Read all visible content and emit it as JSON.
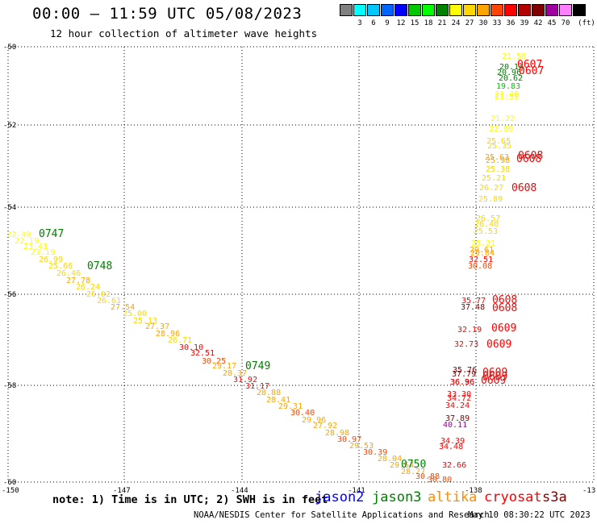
{
  "header": {
    "title": "00:00 – 11:59 UTC 05/08/2023",
    "subtitle": "12 hour collection of altimeter wave heights"
  },
  "legend": {
    "unit": "(ft)",
    "bins": [
      {
        "label": "",
        "color": "#808080"
      },
      {
        "label": "3",
        "color": "#00ffff"
      },
      {
        "label": "6",
        "color": "#00c8ff"
      },
      {
        "label": "9",
        "color": "#0064ff"
      },
      {
        "label": "12",
        "color": "#0000ff"
      },
      {
        "label": "15",
        "color": "#00c800"
      },
      {
        "label": "18",
        "color": "#00ff00"
      },
      {
        "label": "21",
        "color": "#008000"
      },
      {
        "label": "24",
        "color": "#ffff00"
      },
      {
        "label": "27",
        "color": "#ffd700"
      },
      {
        "label": "30",
        "color": "#ffa500"
      },
      {
        "label": "33",
        "color": "#ff4500"
      },
      {
        "label": "36",
        "color": "#ff0000"
      },
      {
        "label": "39",
        "color": "#b40000"
      },
      {
        "label": "42",
        "color": "#800000"
      },
      {
        "label": "45",
        "color": "#a000a0"
      },
      {
        "label": "70",
        "color": "#ff80ff"
      },
      {
        "label": "",
        "color": "#000000"
      }
    ]
  },
  "map": {
    "lon_ticks": [
      "-150",
      "-147",
      "-144",
      "-141",
      "-138",
      "-13"
    ],
    "lat_ticks": [
      "-50",
      "-52",
      "-54",
      "-56",
      "-58",
      "-60"
    ],
    "grid_color": "#000000"
  },
  "tracks": [
    {
      "name": "west",
      "points": [
        {
          "v": "22.49",
          "c": "#ffff00"
        },
        {
          "v": "22.19",
          "c": "#ffff00"
        },
        {
          "v": "23.41",
          "c": "#ffff00"
        },
        {
          "v": "23.19",
          "c": "#ffff00"
        },
        {
          "v": "26.99",
          "c": "#ffd700"
        },
        {
          "v": "25.66",
          "c": "#ffd700"
        },
        {
          "v": "26.46",
          "c": "#ffd700"
        },
        {
          "v": "27.78",
          "c": "#ffa500"
        },
        {
          "v": "26.24",
          "c": "#ffd700"
        },
        {
          "v": "26.02",
          "c": "#ffd700"
        },
        {
          "v": "26.61",
          "c": "#ffd700"
        },
        {
          "v": "27.54",
          "c": "#ffa500"
        },
        {
          "v": "25.00",
          "c": "#ffd700"
        },
        {
          "v": "25.13",
          "c": "#ffd700"
        },
        {
          "v": "27.37",
          "c": "#ffa500"
        },
        {
          "v": "28.96",
          "c": "#ffa500"
        },
        {
          "v": "26.71",
          "c": "#ffd700"
        },
        {
          "v": "30.10",
          "c": "#ff0000"
        },
        {
          "v": "32.51",
          "c": "#ff0000"
        },
        {
          "v": "30.25",
          "c": "#ff4500"
        },
        {
          "v": "29.17",
          "c": "#ffa500"
        },
        {
          "v": "28.37",
          "c": "#ffa500"
        },
        {
          "v": "31.92",
          "c": "#ff0000"
        },
        {
          "v": "31.17",
          "c": "#ff0000"
        },
        {
          "v": "28.88",
          "c": "#ffa500"
        },
        {
          "v": "28.41",
          "c": "#ffa500"
        },
        {
          "v": "29.31",
          "c": "#ffa500"
        },
        {
          "v": "30.40",
          "c": "#ff4500"
        },
        {
          "v": "29.96",
          "c": "#ffa500"
        },
        {
          "v": "27.92",
          "c": "#ffa500"
        },
        {
          "v": "28.98",
          "c": "#ffa500"
        },
        {
          "v": "30.97",
          "c": "#ff4500"
        },
        {
          "v": "29.53",
          "c": "#ffa500"
        },
        {
          "v": "30.39",
          "c": "#ff4500"
        },
        {
          "v": "28.04",
          "c": "#ffa500"
        },
        {
          "v": "29.64",
          "c": "#ffa500"
        },
        {
          "v": "28.27",
          "c": "#ffa500"
        },
        {
          "v": "30.88",
          "c": "#ff4500"
        },
        {
          "v": "30.80",
          "c": "#ff4500"
        }
      ]
    },
    {
      "name": "east",
      "points": [
        {
          "v": "21.56",
          "c": "#ffff00"
        },
        {
          "v": "20.14",
          "c": "#008000"
        },
        {
          "v": "20.96",
          "c": "#008000"
        },
        {
          "v": "20.62",
          "c": "#008000"
        },
        {
          "v": "19.83",
          "c": "#00c800"
        },
        {
          "v": "21.30",
          "c": "#ffff00"
        },
        {
          "v": "21.59",
          "c": "#ffff00"
        },
        {
          "v": "21.22",
          "c": "#ffff00"
        },
        {
          "v": "22.80",
          "c": "#ffff00"
        },
        {
          "v": "25.65",
          "c": "#ffd700"
        },
        {
          "v": "25.35",
          "c": "#ffd700"
        },
        {
          "v": "25.63",
          "c": "#ffa500"
        },
        {
          "v": "25.98",
          "c": "#ffa500"
        },
        {
          "v": "25.38",
          "c": "#ffd700"
        },
        {
          "v": "25.21",
          "c": "#ffd700"
        },
        {
          "v": "26.27",
          "c": "#ffd700"
        },
        {
          "v": "25.89",
          "c": "#ffd700"
        },
        {
          "v": "26.57",
          "c": "#ffd700"
        },
        {
          "v": "26.40",
          "c": "#ffd700"
        },
        {
          "v": "25.53",
          "c": "#ffd700"
        },
        {
          "v": "25.21",
          "c": "#ffff00"
        },
        {
          "v": "29.61",
          "c": "#ffa500"
        },
        {
          "v": "29.84",
          "c": "#ffa500"
        },
        {
          "v": "32.51",
          "c": "#ff0000"
        },
        {
          "v": "30.08",
          "c": "#ff4500"
        },
        {
          "v": "35.77",
          "c": "#ff0000"
        },
        {
          "v": "37.48",
          "c": "#800000"
        },
        {
          "v": "32.19",
          "c": "#ff0000"
        },
        {
          "v": "32.73",
          "c": "#ff0000"
        },
        {
          "v": "35.76",
          "c": "#800000"
        },
        {
          "v": "37.79",
          "c": "#800000"
        },
        {
          "v": "36.96",
          "c": "#800000"
        },
        {
          "v": "36.36",
          "c": "#ff0000"
        },
        {
          "v": "33.30",
          "c": "#ff0000"
        },
        {
          "v": "34.72",
          "c": "#ff0000"
        },
        {
          "v": "34.24",
          "c": "#ff0000"
        },
        {
          "v": "40.11",
          "c": "#a000a0"
        },
        {
          "v": "37.89",
          "c": "#800000"
        },
        {
          "v": "34.39",
          "c": "#ff0000"
        },
        {
          "v": "34.48",
          "c": "#ff0000"
        },
        {
          "v": "32.66",
          "c": "#ff0000"
        }
      ]
    }
  ],
  "pass_times": [
    {
      "t": "0747",
      "c": "#008000"
    },
    {
      "t": "0748",
      "c": "#008000"
    },
    {
      "t": "0749",
      "c": "#008000"
    },
    {
      "t": "0750",
      "c": "#008000"
    },
    {
      "t": "0607",
      "c": "#ff0000"
    },
    {
      "t": "0607",
      "c": "#ff0000"
    },
    {
      "t": "0608",
      "c": "#ff0000"
    },
    {
      "t": "0608",
      "c": "#ff0000"
    },
    {
      "t": "0608",
      "c": "#ff0000"
    },
    {
      "t": "0608",
      "c": "#ff0000"
    },
    {
      "t": "0608",
      "c": "#ff0000"
    },
    {
      "t": "0609",
      "c": "#ff0000"
    },
    {
      "t": "0609",
      "c": "#ff0000"
    },
    {
      "t": "0609",
      "c": "#ff0000"
    },
    {
      "t": "0609",
      "c": "#ff0000"
    },
    {
      "t": "0609",
      "c": "#ff0000"
    }
  ],
  "footer": {
    "note": "note: 1) Time is in UTC; 2) SWH is in feet",
    "satellites": [
      {
        "label": "jason2",
        "color": "#0000ff"
      },
      {
        "label": "jason3",
        "color": "#008000"
      },
      {
        "label": "altika",
        "color": "#ff8c00"
      },
      {
        "label": "cryosat",
        "color": "#ff0000"
      },
      {
        "label": "s3a",
        "color": "#800000"
      }
    ],
    "credit": "NOAA/NESDIS Center for Satellite Applications and Research",
    "stamp": "May 10 08:30:22 UTC 2023"
  }
}
